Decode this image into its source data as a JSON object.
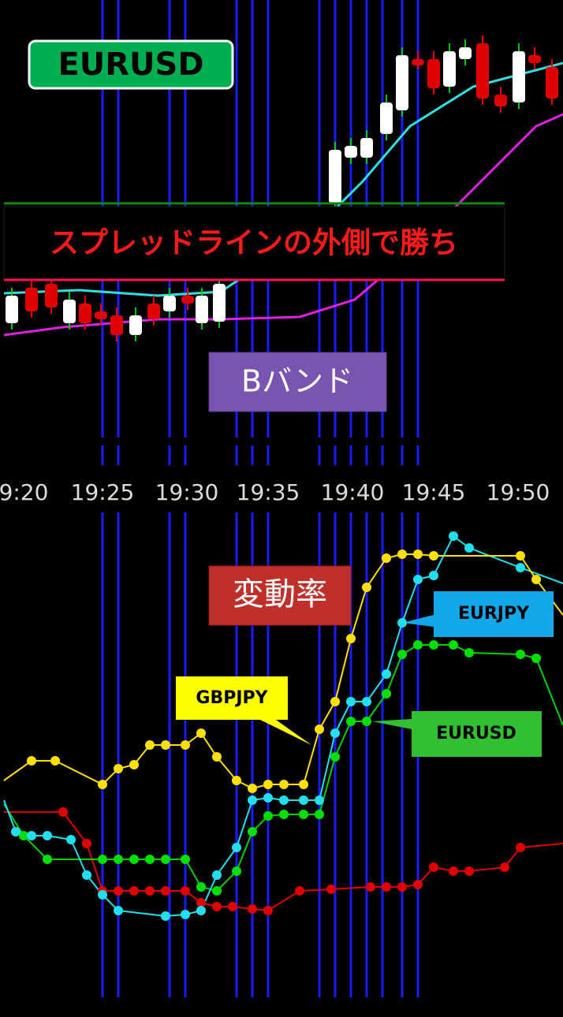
{
  "badge": "EURUSD",
  "banner": "スプレッドラインの外側で勝ち",
  "upper_label": "Bバンド",
  "times": [
    "9:20",
    "19:25",
    "19:30",
    "19:35",
    "19:40",
    "19:45",
    "19:50"
  ],
  "lower_label": "変動率",
  "callouts": {
    "gbpjpy": "GBPJPY",
    "eurjpy": "EURJPY",
    "eurusd": "EURUSD"
  }
}
